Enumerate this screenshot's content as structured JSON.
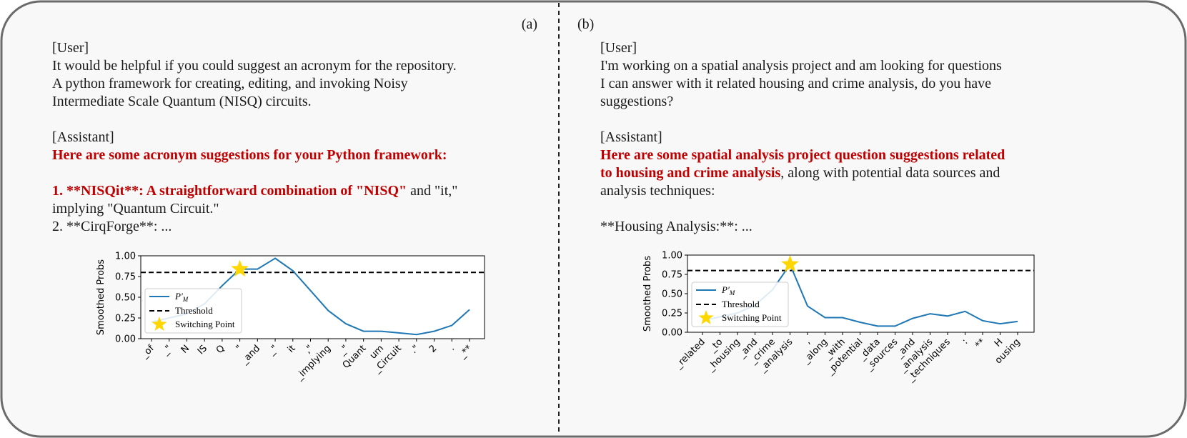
{
  "panels": [
    {
      "label": "(a)",
      "user": {
        "role": "[User]",
        "lines": [
          "It would be helpful if you could suggest an acronym for the repository.",
          "A python framework for creating, editing, and invoking Noisy",
          "Intermediate Scale Quantum (NISQ) circuits."
        ]
      },
      "assistant": {
        "role": "[Assistant]",
        "paragraphs": [
          [
            [
              {
                "text": "Here are some acronym suggestions for your Python framework:",
                "red": true
              }
            ]
          ],
          [
            [
              {
                "text": "1. **NISQit**: A straightforward combination of \"NISQ\"",
                "red": true
              },
              {
                "text": " and \"it,\"",
                "red": false
              }
            ],
            [
              {
                "text": "implying \"Quantum Circuit.\"",
                "red": false
              }
            ],
            [
              {
                "text": "2. **CirqForge**: ...",
                "red": false
              }
            ]
          ]
        ]
      }
    },
    {
      "label": "(b)",
      "user": {
        "role": "[User]",
        "lines": [
          "I'm working on a spatial analysis project and am looking for questions",
          "I can answer with it related housing and crime analysis, do you have",
          "suggestions?"
        ]
      },
      "assistant": {
        "role": "[Assistant]",
        "paragraphs": [
          [
            [
              {
                "text": "Here are some spatial analysis project question suggestions related",
                "red": true
              }
            ],
            [
              {
                "text": "to housing and crime analysis",
                "red": true
              },
              {
                "text": ", along with potential data sources and",
                "red": false
              }
            ],
            [
              {
                "text": "analysis techniques:",
                "red": false
              }
            ]
          ],
          [
            [
              {
                "text": "**Housing Analysis:**: ...",
                "red": false
              }
            ]
          ]
        ]
      }
    }
  ],
  "chart_data": [
    {
      "type": "line",
      "ylabel": "Smoothed Probs",
      "categories": [
        "_of",
        "_\"",
        "N",
        "IS",
        "Q",
        "\"",
        "_and",
        "_\"",
        "it",
        ",\"",
        "_implying",
        "_\"",
        "Quant",
        "um",
        "_Circuit",
        ".\"",
        "2",
        ".",
        "_**"
      ],
      "series": [
        {
          "name": {
            "main": "P′",
            "sub": "M"
          },
          "color": "#1f77b4",
          "values": [
            0.2,
            0.25,
            0.3,
            0.42,
            0.64,
            0.84,
            0.84,
            0.97,
            0.82,
            0.58,
            0.34,
            0.18,
            0.09,
            0.09,
            0.07,
            0.05,
            0.09,
            0.16,
            0.35
          ]
        }
      ],
      "threshold": {
        "name": "Threshold",
        "value": 0.8
      },
      "switching_point": {
        "name": "Switching Point",
        "index": 5,
        "color": "#ffd700"
      },
      "ylim": [
        0,
        1
      ],
      "yticks": [
        {
          "value": 0,
          "label": "0.00"
        },
        {
          "value": 0.25,
          "label": "0.25"
        },
        {
          "value": 0.5,
          "label": "0.50"
        },
        {
          "value": 0.75,
          "label": "0.75"
        },
        {
          "value": 1,
          "label": "1.00"
        }
      ],
      "legend": "lower left"
    },
    {
      "type": "line",
      "ylabel": "Smoothed Probs",
      "categories": [
        "_related",
        "_to",
        "_housing",
        "_and",
        "_crime",
        "_analysis",
        ",",
        "_along",
        "_with",
        "_potential",
        "_data",
        "_sources",
        "_and",
        "_analysis",
        "_techniques",
        ":",
        "**",
        "H",
        "ousing"
      ],
      "series": [
        {
          "name": {
            "main": "P′",
            "sub": "M"
          },
          "color": "#1f77b4",
          "values": [
            0.15,
            0.2,
            0.25,
            0.35,
            0.55,
            0.88,
            0.34,
            0.19,
            0.19,
            0.13,
            0.08,
            0.08,
            0.18,
            0.24,
            0.21,
            0.27,
            0.15,
            0.11,
            0.14
          ]
        }
      ],
      "threshold": {
        "name": "Threshold",
        "value": 0.8
      },
      "switching_point": {
        "name": "Switching Point",
        "index": 5,
        "color": "#ffd700"
      },
      "ylim": [
        0,
        1
      ],
      "yticks": [
        {
          "value": 0,
          "label": "0.00"
        },
        {
          "value": 0.25,
          "label": "0.25"
        },
        {
          "value": 0.5,
          "label": "0.50"
        },
        {
          "value": 0.75,
          "label": "0.75"
        },
        {
          "value": 1,
          "label": "1.00"
        }
      ],
      "legend": "lower left"
    }
  ]
}
